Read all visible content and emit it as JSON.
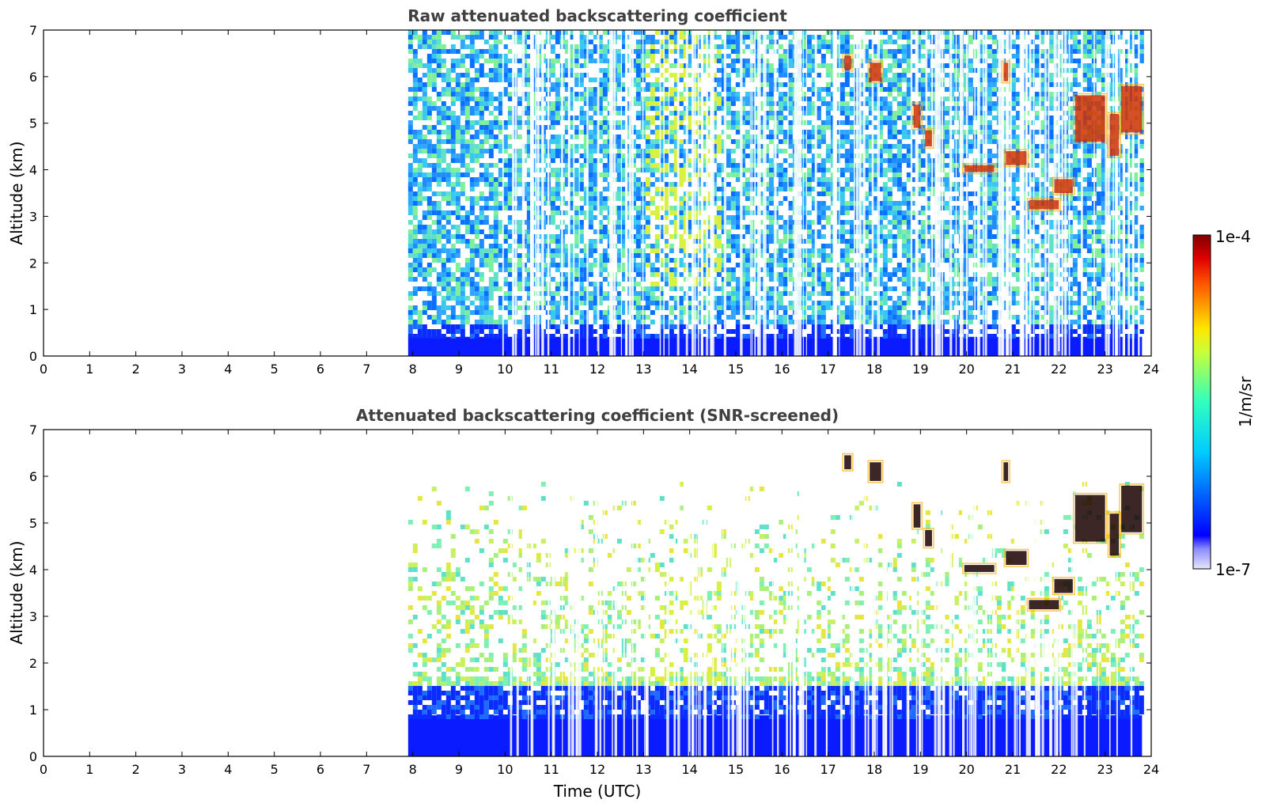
{
  "chart_data": [
    {
      "type": "heatmap",
      "title": "Raw attenuated backscattering coefficient",
      "ylabel": "Altitude (km)",
      "xlabel": "",
      "xlim": [
        0,
        24
      ],
      "ylim": [
        0,
        7
      ],
      "x_ticks": [
        "0",
        "1",
        "2",
        "3",
        "4",
        "5",
        "6",
        "7",
        "8",
        "9",
        "10",
        "11",
        "12",
        "13",
        "14",
        "15",
        "16",
        "17",
        "18",
        "19",
        "20",
        "21",
        "22",
        "23",
        "24"
      ],
      "y_ticks": [
        "0",
        "1",
        "2",
        "3",
        "4",
        "5",
        "6",
        "7"
      ],
      "data_start_hour": 7.9,
      "data_end_hour": 23.8,
      "cloud_layers": [
        {
          "t0": 17.35,
          "t1": 17.5,
          "z0": 6.15,
          "z1": 6.45
        },
        {
          "t0": 17.9,
          "t1": 18.15,
          "z0": 5.9,
          "z1": 6.3
        },
        {
          "t0": 18.85,
          "t1": 19.0,
          "z0": 4.9,
          "z1": 5.4
        },
        {
          "t0": 19.1,
          "t1": 19.25,
          "z0": 4.5,
          "z1": 4.85
        },
        {
          "t0": 19.95,
          "t1": 20.6,
          "z0": 3.95,
          "z1": 4.1
        },
        {
          "t0": 20.8,
          "t1": 20.9,
          "z0": 5.9,
          "z1": 6.3
        },
        {
          "t0": 20.85,
          "t1": 21.3,
          "z0": 4.1,
          "z1": 4.4
        },
        {
          "t0": 21.35,
          "t1": 22.0,
          "z0": 3.15,
          "z1": 3.35
        },
        {
          "t0": 21.9,
          "t1": 22.3,
          "z0": 3.5,
          "z1": 3.8
        },
        {
          "t0": 22.35,
          "t1": 23.0,
          "z0": 4.6,
          "z1": 5.6
        },
        {
          "t0": 23.1,
          "t1": 23.3,
          "z0": 4.3,
          "z1": 5.2
        },
        {
          "t0": 23.35,
          "t1": 23.8,
          "z0": 4.8,
          "z1": 5.8
        }
      ]
    },
    {
      "type": "heatmap",
      "title": "Attenuated backscattering coefficient (SNR-screened)",
      "ylabel": "Altitude (km)",
      "xlabel": "Time (UTC)",
      "xlim": [
        0,
        24
      ],
      "ylim": [
        0,
        7
      ],
      "x_ticks": [
        "0",
        "1",
        "2",
        "3",
        "4",
        "5",
        "6",
        "7",
        "8",
        "9",
        "10",
        "11",
        "12",
        "13",
        "14",
        "15",
        "16",
        "17",
        "18",
        "19",
        "20",
        "21",
        "22",
        "23",
        "24"
      ],
      "y_ticks": [
        "0",
        "1",
        "2",
        "3",
        "4",
        "5",
        "6",
        "7"
      ],
      "data_start_hour": 7.9,
      "data_end_hour": 23.8
    }
  ],
  "colorbar": {
    "label": "1/m/sr",
    "max_label": "1e-4",
    "min_label": "1e-7",
    "scale": "log",
    "range": [
      1e-07,
      0.0001
    ],
    "colormap": "jet"
  }
}
